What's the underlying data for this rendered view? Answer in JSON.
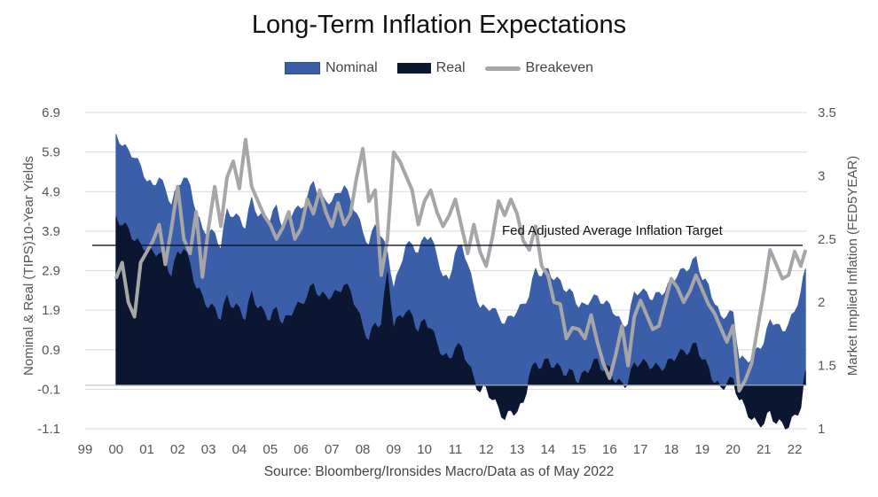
{
  "chart_data": {
    "type": "area",
    "title": "Long-Term Inflation Expectations",
    "source": "Source: Bloomberg/Ironsides Macro/Data as of May 2022",
    "ylabel_left": "Nominal  & Real (TIPS)10-Year Yields",
    "ylabel_right": "Market Implied Inflation (FED5YEAR)",
    "ylim_left": [
      -1.1,
      6.9
    ],
    "ylim_right": [
      1.0,
      3.5
    ],
    "yticks_left": [
      "6.9",
      "5.9",
      "4.9",
      "3.9",
      "2.9",
      "1.9",
      "0.9",
      "-0.1",
      "-1.1"
    ],
    "yticks_right": [
      "3.5",
      "3",
      "2.5",
      "2",
      "1.5",
      "1"
    ],
    "xlabels": [
      "99",
      "00",
      "01",
      "02",
      "03",
      "04",
      "05",
      "06",
      "07",
      "08",
      "09",
      "10",
      "11",
      "12",
      "13",
      "14",
      "15",
      "16",
      "17",
      "18",
      "19",
      "20",
      "21",
      "22"
    ],
    "x_start": 1999.0,
    "x_end": 2022.4,
    "annotation": "Fed Adjusted Average Inflation Target",
    "target_line_right_axis": 2.45,
    "legend": [
      {
        "name": "Nominal",
        "color": "#3b5ea8",
        "kind": "area"
      },
      {
        "name": "Real",
        "color": "#0b1630",
        "kind": "area"
      },
      {
        "name": "Breakeven",
        "color": "#a6a6a6",
        "kind": "line"
      }
    ],
    "series": [
      {
        "name": "Nominal",
        "axis": "left",
        "x": [
          2000.0,
          2000.2,
          2000.4,
          2000.6,
          2000.8,
          2001.0,
          2001.2,
          2001.4,
          2001.6,
          2001.8,
          2002.0,
          2002.2,
          2002.4,
          2002.6,
          2002.8,
          2003.0,
          2003.2,
          2003.4,
          2003.6,
          2003.8,
          2004.0,
          2004.2,
          2004.4,
          2004.6,
          2004.8,
          2005.0,
          2005.2,
          2005.4,
          2005.6,
          2005.8,
          2006.0,
          2006.2,
          2006.4,
          2006.6,
          2006.8,
          2007.0,
          2007.2,
          2007.4,
          2007.6,
          2007.8,
          2008.0,
          2008.2,
          2008.4,
          2008.6,
          2008.8,
          2009.0,
          2009.2,
          2009.4,
          2009.6,
          2009.8,
          2010.0,
          2010.2,
          2010.4,
          2010.6,
          2010.8,
          2011.0,
          2011.2,
          2011.4,
          2011.6,
          2011.8,
          2012.0,
          2012.2,
          2012.4,
          2012.6,
          2012.8,
          2013.0,
          2013.2,
          2013.4,
          2013.6,
          2013.8,
          2014.0,
          2014.2,
          2014.4,
          2014.6,
          2014.8,
          2015.0,
          2015.2,
          2015.4,
          2015.6,
          2015.8,
          2016.0,
          2016.2,
          2016.4,
          2016.6,
          2016.8,
          2017.0,
          2017.2,
          2017.4,
          2017.6,
          2017.8,
          2018.0,
          2018.2,
          2018.4,
          2018.6,
          2018.8,
          2019.0,
          2019.2,
          2019.4,
          2019.6,
          2019.8,
          2020.0,
          2020.2,
          2020.4,
          2020.6,
          2020.8,
          2021.0,
          2021.2,
          2021.4,
          2021.6,
          2021.8,
          2022.0,
          2022.2,
          2022.35
        ],
        "values": [
          6.3,
          6.1,
          5.9,
          5.8,
          5.5,
          5.2,
          5.0,
          5.3,
          4.9,
          4.6,
          5.0,
          5.3,
          5.0,
          4.4,
          3.9,
          3.9,
          3.8,
          3.5,
          4.4,
          4.3,
          4.2,
          4.0,
          4.7,
          4.3,
          4.2,
          4.2,
          4.5,
          4.0,
          4.2,
          4.5,
          4.4,
          4.8,
          5.1,
          4.8,
          4.6,
          4.7,
          4.8,
          5.1,
          4.6,
          4.4,
          3.8,
          3.6,
          4.0,
          3.8,
          3.3,
          2.5,
          2.9,
          3.6,
          3.5,
          3.4,
          3.7,
          3.8,
          3.2,
          2.8,
          2.6,
          3.4,
          3.5,
          3.1,
          2.4,
          2.0,
          1.9,
          2.0,
          1.7,
          1.6,
          1.7,
          1.9,
          2.0,
          2.3,
          2.9,
          2.8,
          2.9,
          2.7,
          2.6,
          2.4,
          2.3,
          2.0,
          2.0,
          2.2,
          2.2,
          2.1,
          2.0,
          1.8,
          1.5,
          1.6,
          2.3,
          2.4,
          2.3,
          2.2,
          2.3,
          2.4,
          2.6,
          2.8,
          2.9,
          3.0,
          3.2,
          2.7,
          2.5,
          2.1,
          1.7,
          1.8,
          1.8,
          0.7,
          0.6,
          0.7,
          0.9,
          1.1,
          1.6,
          1.6,
          1.3,
          1.6,
          1.8,
          2.4,
          2.9
        ]
      },
      {
        "name": "Real",
        "axis": "left",
        "x": [
          2000.0,
          2000.2,
          2000.4,
          2000.6,
          2000.8,
          2001.0,
          2001.2,
          2001.4,
          2001.6,
          2001.8,
          2002.0,
          2002.2,
          2002.4,
          2002.6,
          2002.8,
          2003.0,
          2003.2,
          2003.4,
          2003.6,
          2003.8,
          2004.0,
          2004.2,
          2004.4,
          2004.6,
          2004.8,
          2005.0,
          2005.2,
          2005.4,
          2005.6,
          2005.8,
          2006.0,
          2006.2,
          2006.4,
          2006.6,
          2006.8,
          2007.0,
          2007.2,
          2007.4,
          2007.6,
          2007.8,
          2008.0,
          2008.2,
          2008.4,
          2008.6,
          2008.8,
          2009.0,
          2009.2,
          2009.4,
          2009.6,
          2009.8,
          2010.0,
          2010.2,
          2010.4,
          2010.6,
          2010.8,
          2011.0,
          2011.2,
          2011.4,
          2011.6,
          2011.8,
          2012.0,
          2012.2,
          2012.4,
          2012.6,
          2012.8,
          2013.0,
          2013.2,
          2013.4,
          2013.6,
          2013.8,
          2014.0,
          2014.2,
          2014.4,
          2014.6,
          2014.8,
          2015.0,
          2015.2,
          2015.4,
          2015.6,
          2015.8,
          2016.0,
          2016.2,
          2016.4,
          2016.6,
          2016.8,
          2017.0,
          2017.2,
          2017.4,
          2017.6,
          2017.8,
          2018.0,
          2018.2,
          2018.4,
          2018.6,
          2018.8,
          2019.0,
          2019.2,
          2019.4,
          2019.6,
          2019.8,
          2020.0,
          2020.2,
          2020.4,
          2020.6,
          2020.8,
          2021.0,
          2021.2,
          2021.4,
          2021.6,
          2021.8,
          2022.0,
          2022.2,
          2022.35
        ],
        "values": [
          4.2,
          4.1,
          3.9,
          3.7,
          3.5,
          3.5,
          3.3,
          3.4,
          3.1,
          2.8,
          3.3,
          3.5,
          3.0,
          2.5,
          2.2,
          2.0,
          1.9,
          1.7,
          2.2,
          2.0,
          1.9,
          1.7,
          2.3,
          2.0,
          1.8,
          1.7,
          1.9,
          1.6,
          1.7,
          2.0,
          2.0,
          2.3,
          2.5,
          2.3,
          2.2,
          2.3,
          2.3,
          2.6,
          2.3,
          2.0,
          1.4,
          1.2,
          1.5,
          1.6,
          2.8,
          1.5,
          1.7,
          1.9,
          1.7,
          1.4,
          1.6,
          1.5,
          1.0,
          0.8,
          0.6,
          1.0,
          0.9,
          0.6,
          0.1,
          -0.1,
          -0.1,
          -0.3,
          -0.6,
          -0.8,
          -0.7,
          -0.6,
          -0.5,
          0.3,
          0.5,
          0.5,
          0.6,
          0.5,
          0.4,
          0.3,
          0.3,
          0.1,
          0.3,
          0.5,
          0.6,
          0.4,
          0.4,
          0.1,
          0.0,
          0.1,
          0.5,
          0.6,
          0.5,
          0.5,
          0.4,
          0.5,
          0.6,
          0.8,
          0.8,
          0.9,
          1.0,
          0.7,
          0.4,
          0.1,
          -0.1,
          0.1,
          0.1,
          -0.3,
          -0.6,
          -0.8,
          -1.0,
          -0.9,
          -0.7,
          -0.9,
          -1.0,
          -1.0,
          -0.8,
          -0.5,
          0.3
        ]
      },
      {
        "name": "Breakeven",
        "axis": "right",
        "x": [
          2000.0,
          2000.2,
          2000.4,
          2000.6,
          2000.8,
          2001.0,
          2001.2,
          2001.4,
          2001.6,
          2001.8,
          2002.0,
          2002.2,
          2002.4,
          2002.6,
          2002.8,
          2003.0,
          2003.2,
          2003.4,
          2003.6,
          2003.8,
          2004.0,
          2004.2,
          2004.4,
          2004.6,
          2004.8,
          2005.0,
          2005.2,
          2005.4,
          2005.6,
          2005.8,
          2006.0,
          2006.2,
          2006.4,
          2006.6,
          2006.8,
          2007.0,
          2007.2,
          2007.4,
          2007.6,
          2007.8,
          2008.0,
          2008.2,
          2008.4,
          2008.6,
          2008.8,
          2009.0,
          2009.2,
          2009.4,
          2009.6,
          2009.8,
          2010.0,
          2010.2,
          2010.4,
          2010.6,
          2010.8,
          2011.0,
          2011.2,
          2011.4,
          2011.6,
          2011.8,
          2012.0,
          2012.2,
          2012.4,
          2012.6,
          2012.8,
          2013.0,
          2013.2,
          2013.4,
          2013.6,
          2013.8,
          2014.0,
          2014.2,
          2014.4,
          2014.6,
          2014.8,
          2015.0,
          2015.2,
          2015.4,
          2015.6,
          2015.8,
          2016.0,
          2016.2,
          2016.4,
          2016.6,
          2016.8,
          2017.0,
          2017.2,
          2017.4,
          2017.6,
          2017.8,
          2018.0,
          2018.2,
          2018.4,
          2018.6,
          2018.8,
          2019.0,
          2019.2,
          2019.4,
          2019.6,
          2019.8,
          2020.0,
          2020.2,
          2020.4,
          2020.6,
          2020.8,
          2021.0,
          2021.2,
          2021.4,
          2021.6,
          2021.8,
          2022.0,
          2022.2,
          2022.35
        ],
        "values": [
          2.2,
          2.3,
          2.0,
          1.9,
          2.3,
          2.4,
          2.5,
          2.6,
          2.3,
          2.6,
          2.9,
          2.5,
          2.4,
          2.7,
          2.2,
          2.6,
          2.9,
          2.6,
          3.0,
          3.1,
          2.9,
          3.3,
          2.9,
          2.8,
          2.7,
          2.6,
          2.5,
          2.6,
          2.7,
          2.5,
          2.6,
          2.8,
          2.7,
          2.9,
          2.7,
          2.6,
          2.8,
          2.6,
          2.7,
          3.0,
          3.2,
          2.8,
          2.9,
          2.2,
          2.5,
          3.2,
          3.1,
          3.0,
          2.9,
          2.6,
          2.8,
          2.9,
          2.7,
          2.6,
          2.7,
          2.8,
          2.6,
          2.4,
          2.6,
          2.4,
          2.3,
          2.5,
          2.8,
          2.7,
          2.8,
          2.7,
          2.5,
          2.4,
          2.6,
          2.3,
          2.2,
          2.0,
          2.0,
          1.7,
          1.8,
          1.8,
          1.7,
          1.9,
          1.7,
          1.5,
          1.4,
          1.6,
          1.8,
          1.5,
          1.9,
          2.0,
          1.9,
          1.8,
          1.8,
          2.0,
          2.2,
          2.1,
          2.0,
          2.1,
          2.2,
          2.1,
          2.0,
          1.9,
          1.8,
          1.7,
          1.8,
          1.3,
          1.4,
          1.5,
          1.8,
          2.1,
          2.4,
          2.3,
          2.2,
          2.2,
          2.4,
          2.3,
          2.4
        ]
      }
    ]
  }
}
